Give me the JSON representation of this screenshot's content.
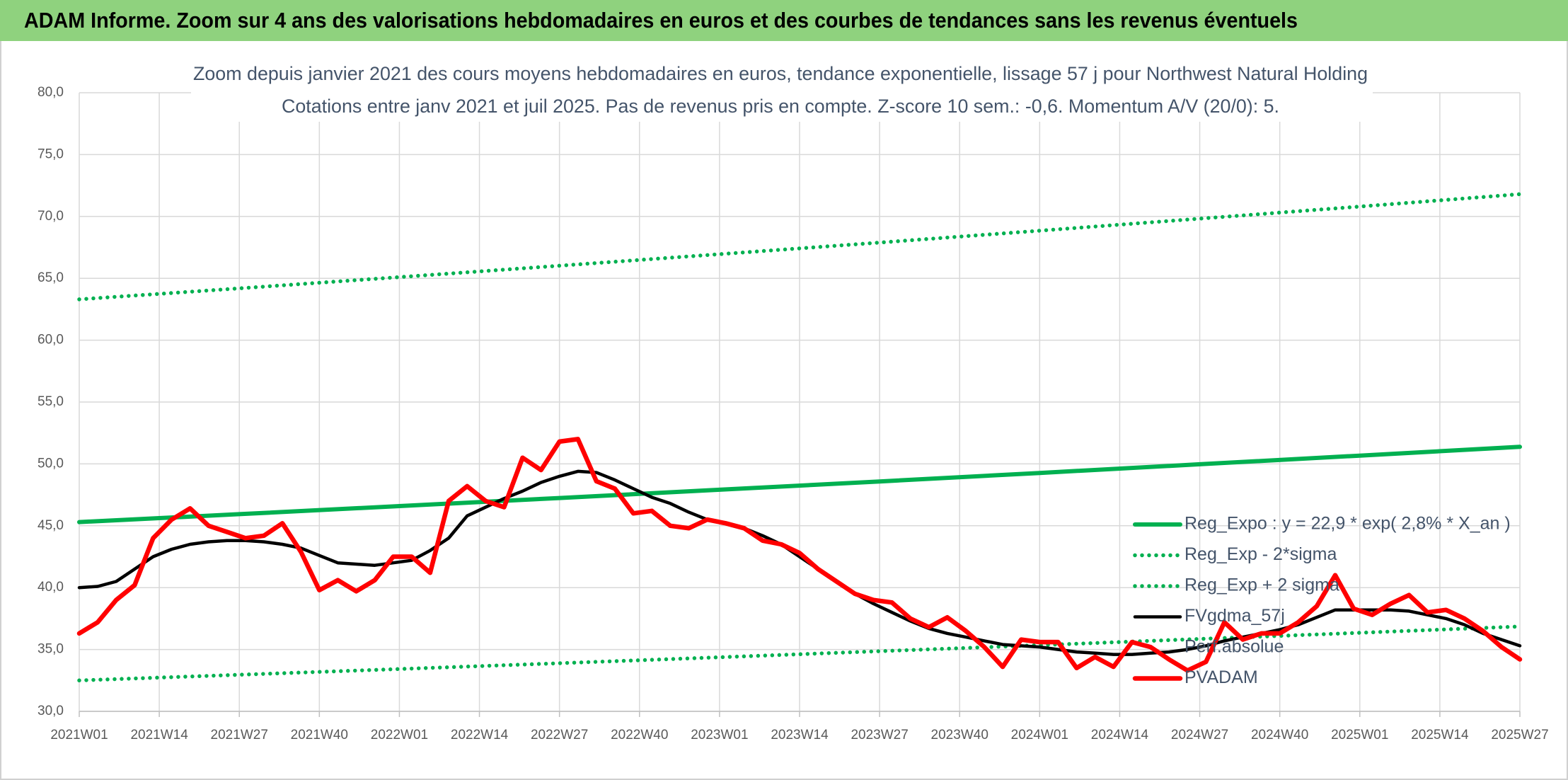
{
  "header": {
    "title": "ADAM Informe. Zoom sur 4 ans des valorisations hebdomadaires en euros et des courbes de tendances sans les revenus éventuels"
  },
  "chart_data": {
    "type": "line",
    "title": "Zoom depuis janvier 2021 des cours moyens hebdomadaires en euros, tendance exponentielle, lissage 57 j pour Northwest Natural Holding",
    "subtitle": "Cotations entre janv 2021 et juil 2025. Pas de revenus pris en compte. Z-score 10 sem.: -0,6. Momentum A/V (20/0): 5.",
    "x": [
      0,
      3,
      6,
      9,
      12,
      15,
      18,
      21,
      24,
      27,
      30,
      33,
      36,
      39,
      42,
      45,
      48,
      51,
      54,
      57,
      60,
      63,
      66,
      69,
      72,
      75,
      78,
      81,
      84,
      87,
      90,
      93,
      96,
      99,
      102,
      105,
      108,
      111,
      114,
      117,
      120,
      123,
      126,
      129,
      132,
      135,
      138,
      141,
      144,
      147,
      150,
      153,
      156,
      159,
      162,
      165,
      168,
      171,
      174,
      177,
      180,
      183,
      186,
      189,
      192,
      195,
      198,
      201,
      204,
      207,
      210,
      213,
      216,
      219,
      222,
      225,
      228,
      231,
      234
    ],
    "xlim": [
      0,
      234
    ],
    "xticks": [
      {
        "value": 0,
        "label": "2021W01"
      },
      {
        "value": 13,
        "label": "2021W14"
      },
      {
        "value": 26,
        "label": "2021W27"
      },
      {
        "value": 39,
        "label": "2021W40"
      },
      {
        "value": 52,
        "label": "2022W01"
      },
      {
        "value": 65,
        "label": "2022W14"
      },
      {
        "value": 78,
        "label": "2022W27"
      },
      {
        "value": 91,
        "label": "2022W40"
      },
      {
        "value": 104,
        "label": "2023W01"
      },
      {
        "value": 117,
        "label": "2023W14"
      },
      {
        "value": 130,
        "label": "2023W27"
      },
      {
        "value": 143,
        "label": "2023W40"
      },
      {
        "value": 156,
        "label": "2024W01"
      },
      {
        "value": 169,
        "label": "2024W14"
      },
      {
        "value": 182,
        "label": "2024W27"
      },
      {
        "value": 195,
        "label": "2024W40"
      },
      {
        "value": 208,
        "label": "2025W01"
      },
      {
        "value": 221,
        "label": "2025W14"
      },
      {
        "value": 234,
        "label": "2025W27"
      }
    ],
    "ylim": [
      30,
      80
    ],
    "yticks": [
      {
        "value": 30,
        "label": "30,0"
      },
      {
        "value": 35,
        "label": "35,0"
      },
      {
        "value": 40,
        "label": "40,0"
      },
      {
        "value": 45,
        "label": "45,0"
      },
      {
        "value": 50,
        "label": "50,0"
      },
      {
        "value": 55,
        "label": "55,0"
      },
      {
        "value": 60,
        "label": "60,0"
      },
      {
        "value": 65,
        "label": "65,0"
      },
      {
        "value": 70,
        "label": "70,0"
      },
      {
        "value": 75,
        "label": "75,0"
      },
      {
        "value": 80,
        "label": "80,0"
      }
    ],
    "grid": true,
    "legend_position": "right",
    "series": [
      {
        "name": "Reg_Expo : y = 22,9 * exp( 2,8% *  X_an )",
        "color": "#00b050",
        "style": "solid",
        "x": [
          0,
          26,
          52,
          78,
          104,
          130,
          156,
          182,
          208,
          234
        ],
        "values": [
          45.3,
          45.94,
          46.59,
          47.24,
          47.91,
          48.58,
          49.27,
          49.97,
          50.67,
          51.38
        ]
      },
      {
        "name": "Reg_Exp - 2*sigma",
        "color": "#00b050",
        "style": "dotted",
        "x": [
          0,
          26,
          52,
          78,
          104,
          130,
          156,
          182,
          208,
          234
        ],
        "values": [
          32.5,
          32.96,
          33.42,
          33.89,
          34.37,
          34.86,
          35.35,
          35.85,
          36.35,
          36.86
        ]
      },
      {
        "name": "Reg_Exp + 2 sigma",
        "color": "#00b050",
        "style": "dotted",
        "x": [
          0,
          26,
          52,
          78,
          104,
          130,
          156,
          182,
          208,
          234
        ],
        "values": [
          63.3,
          64.19,
          65.1,
          66.02,
          66.95,
          67.89,
          68.85,
          69.82,
          70.8,
          71.8
        ]
      },
      {
        "name": "FVgdma_57j",
        "color": "#000000",
        "style": "solid",
        "values": [
          40.0,
          40.1,
          40.5,
          41.5,
          42.5,
          43.1,
          43.5,
          43.7,
          43.8,
          43.8,
          43.7,
          43.5,
          43.2,
          42.6,
          42.0,
          41.9,
          41.8,
          42.0,
          42.2,
          43.0,
          44.0,
          45.8,
          46.5,
          47.2,
          47.8,
          48.5,
          49.0,
          49.4,
          49.3,
          48.7,
          48.0,
          47.3,
          46.8,
          46.1,
          45.5,
          45.2,
          44.8,
          44.2,
          43.5,
          42.5,
          41.5,
          40.5,
          39.5,
          38.7,
          38.0,
          37.3,
          36.7,
          36.3,
          36.0,
          35.7,
          35.4,
          35.3,
          35.2,
          35.0,
          34.8,
          34.7,
          34.6,
          34.6,
          34.7,
          34.8,
          35.0,
          35.3,
          35.7,
          36.0,
          36.3,
          36.6,
          37.0,
          37.6,
          38.2,
          38.2,
          38.2,
          38.2,
          38.1,
          37.8,
          37.5,
          37.0,
          36.3,
          35.8,
          35.3
        ]
      },
      {
        "name": "Perf.absolue"
      },
      {
        "name": "PVADAM",
        "color": "#ff0000",
        "style": "solid",
        "values": [
          36.3,
          37.2,
          39.0,
          40.2,
          44.0,
          45.5,
          46.4,
          45.0,
          44.5,
          44.0,
          44.2,
          45.2,
          42.9,
          39.8,
          40.6,
          39.7,
          40.6,
          42.5,
          42.5,
          41.2,
          47.0,
          48.2,
          47.0,
          46.5,
          50.5,
          49.5,
          51.8,
          52.0,
          48.6,
          48.0,
          46.0,
          46.2,
          45.0,
          44.8,
          45.5,
          45.2,
          44.8,
          43.8,
          43.5,
          42.8,
          41.5,
          40.5,
          39.5,
          39.0,
          38.8,
          37.5,
          36.8,
          37.6,
          36.5,
          35.2,
          33.6,
          35.8,
          35.6,
          35.6,
          33.5,
          34.4,
          33.6,
          35.6,
          35.2,
          34.2,
          33.3,
          34.0,
          37.2,
          35.8,
          36.3,
          36.3,
          37.2,
          38.5,
          41.0,
          38.3,
          37.8,
          38.7,
          39.4,
          38.0,
          38.2,
          37.5,
          36.5,
          35.2,
          34.2
        ]
      }
    ]
  }
}
